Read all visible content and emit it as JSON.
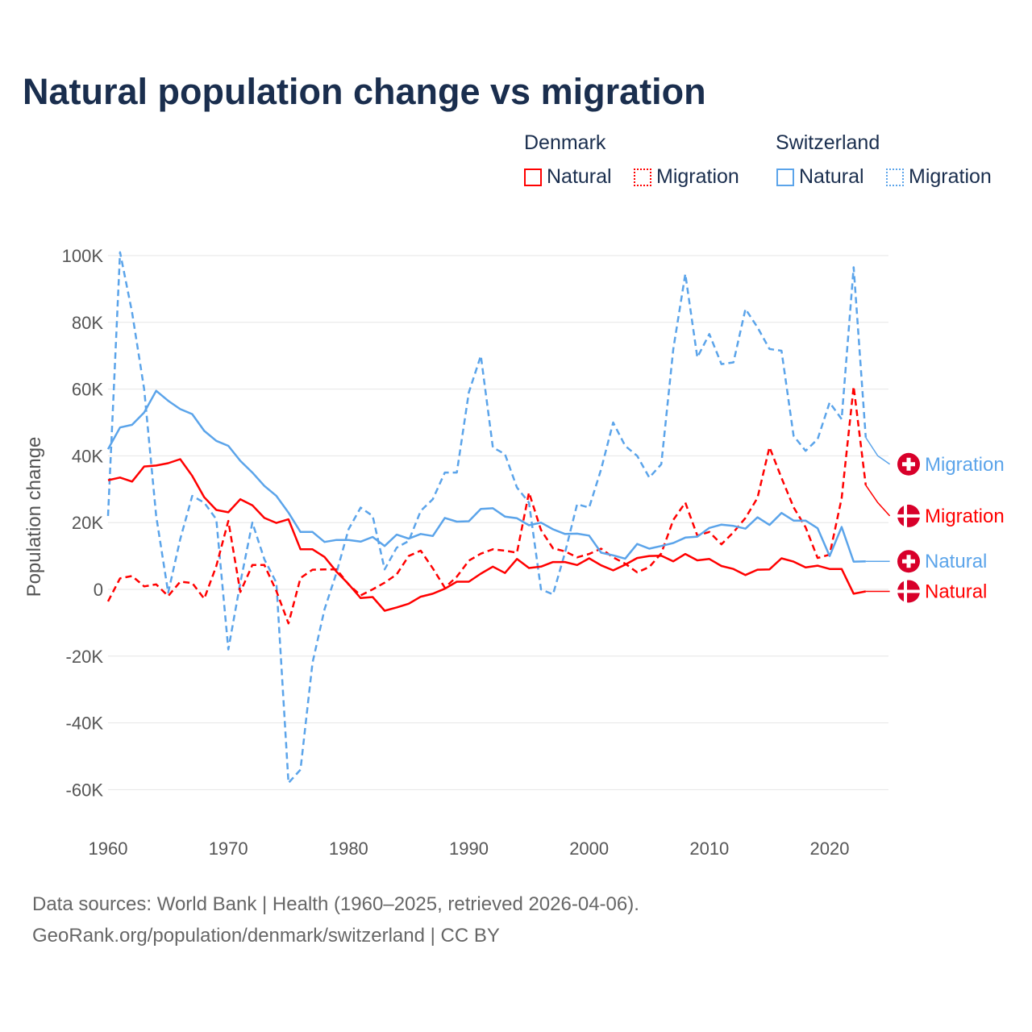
{
  "title": "Natural population change vs migration",
  "legend": {
    "groups": [
      {
        "name": "Denmark",
        "items": [
          {
            "label": "Natural",
            "style": "solid",
            "color": "#ff0000"
          },
          {
            "label": "Migration",
            "style": "dotted",
            "color": "#ff0000"
          }
        ]
      },
      {
        "name": "Switzerland",
        "items": [
          {
            "label": "Natural",
            "style": "solid",
            "color": "#5ba4ea"
          },
          {
            "label": "Migration",
            "style": "dotted",
            "color": "#5ba4ea"
          }
        ]
      }
    ]
  },
  "footer": {
    "line1": "Data sources: World Bank | Health (1960–2025, retrieved 2026-04-06).",
    "line2": "GeoRank.org/population/denmark/switzerland | CC BY"
  },
  "chart_data": {
    "type": "line",
    "title": "Natural population change vs migration",
    "xlabel": "",
    "ylabel": "Population change",
    "xlim": [
      1960,
      2025
    ],
    "ylim": [
      -70000,
      105000
    ],
    "x_ticks": [
      1960,
      1970,
      1980,
      1990,
      2000,
      2010,
      2020
    ],
    "x_tick_labels": [
      "1960",
      "1970",
      "1980",
      "1990",
      "2000",
      "2010",
      "2020"
    ],
    "y_ticks": [
      100000,
      80000,
      60000,
      40000,
      20000,
      0,
      -20000,
      -40000,
      -60000
    ],
    "y_tick_labels": [
      "100K",
      "80K",
      "60K",
      "40K",
      "20K",
      "0",
      "-20K",
      "-40K",
      "-60K"
    ],
    "grid": true,
    "legend_position": "top-right",
    "x_start": 1960,
    "series": [
      {
        "name": "Switzerland Migration",
        "country": "Switzerland",
        "label": "Migration",
        "flag": "switzerland",
        "color": "#5ba4ea",
        "dashed": true,
        "values": [
          22,
          101,
          83,
          60,
          22,
          -1,
          15,
          28,
          26,
          21,
          -18,
          2,
          20,
          9,
          2,
          -58,
          -54,
          -22,
          -6,
          5,
          18,
          24.5,
          22,
          6,
          12.5,
          14.5,
          23.5,
          27,
          35,
          35,
          59,
          70,
          42.5,
          40.5,
          30.5,
          26,
          0,
          -1.5,
          11,
          25.5,
          24.5,
          36,
          50,
          43,
          40,
          33.5,
          37.5,
          72,
          94.5,
          69.5,
          76.5,
          67.5,
          68,
          84,
          78.5,
          72,
          71.5,
          46,
          41.5,
          45,
          56,
          51,
          96.5,
          45.5,
          40,
          37.5
        ]
      },
      {
        "name": "Denmark Migration",
        "country": "Denmark",
        "label": "Migration",
        "flag": "denmark",
        "color": "#ff0000",
        "dashed": true,
        "values": [
          -3.6,
          3.3,
          4,
          0.9,
          1.5,
          -2,
          2.3,
          1.9,
          -2.8,
          7,
          20.5,
          -0.8,
          7.3,
          7.3,
          -0.5,
          -10.2,
          3.4,
          5.9,
          6,
          6,
          1.5,
          -1.8,
          0,
          2,
          4.5,
          10,
          11.6,
          6.3,
          0.5,
          3.8,
          8.6,
          10.7,
          12,
          11.6,
          11,
          29,
          17.8,
          12.3,
          11.4,
          9.6,
          10.6,
          12.2,
          9.6,
          7.7,
          5.1,
          6.7,
          10.8,
          20.8,
          26,
          16.1,
          17.2,
          13.5,
          17.1,
          21.4,
          27.4,
          42.6,
          33.4,
          24.6,
          18.6,
          9.4,
          10.4,
          27.3,
          60.8,
          31.2,
          26,
          22
        ]
      },
      {
        "name": "Switzerland Natural",
        "country": "Switzerland",
        "label": "Natural",
        "flag": "switzerland",
        "color": "#5ba4ea",
        "dashed": false,
        "values": [
          42,
          48.5,
          49.3,
          53,
          59.5,
          56.5,
          54,
          52.5,
          47.5,
          44.5,
          43,
          38.5,
          35,
          31,
          28,
          23,
          17.2,
          17.2,
          14.2,
          14.8,
          14.8,
          14.3,
          15.7,
          13,
          16.4,
          15.2,
          16.6,
          16,
          21.4,
          20.3,
          20.4,
          24.1,
          24.3,
          21.8,
          21.3,
          19.2,
          20,
          18,
          16.6,
          16.7,
          16.1,
          11,
          10.2,
          9.2,
          13.6,
          12.2,
          13,
          13.9,
          15.5,
          15.8,
          18.4,
          19.4,
          19,
          18.2,
          21.6,
          19.3,
          22.9,
          20.6,
          20.6,
          18.3,
          10,
          18.7,
          8.3,
          8.4,
          8.4,
          8.4
        ]
      },
      {
        "name": "Denmark Natural",
        "country": "Denmark",
        "label": "Natural",
        "flag": "denmark",
        "color": "#ff0000",
        "dashed": false,
        "values": [
          32.7,
          33.5,
          32.3,
          36.8,
          37.1,
          37.8,
          39,
          34,
          27.6,
          23.8,
          23.1,
          27,
          25.2,
          21.4,
          19.9,
          21,
          12,
          12,
          9.7,
          5.3,
          1.6,
          -2.6,
          -2.3,
          -6.4,
          -5.4,
          -4.3,
          -2.2,
          -1.3,
          0.2,
          2.3,
          2.3,
          4.7,
          6.8,
          4.9,
          9.1,
          6.4,
          6.8,
          8.2,
          8.2,
          7.3,
          9.3,
          7.2,
          5.7,
          7.4,
          9.4,
          10,
          10.1,
          8.4,
          10.6,
          8.7,
          9.1,
          7,
          6.1,
          4.3,
          5.9,
          6,
          9.3,
          8.3,
          6.6,
          7.1,
          6.1,
          6.1,
          -1.3,
          -0.6,
          -0.6,
          -0.6
        ]
      }
    ],
    "value_units": "thousands"
  }
}
